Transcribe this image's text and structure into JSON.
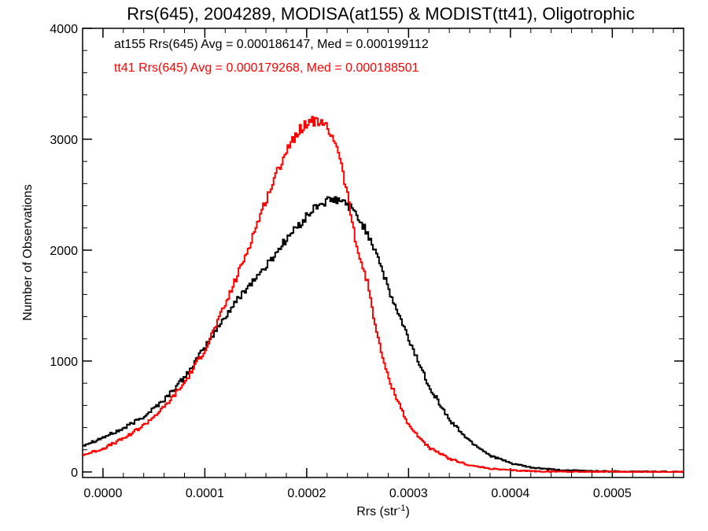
{
  "chart_data": {
    "type": "line",
    "title": "Rrs(645), 2004289, MODISA(at155) & MODIST(tt41), Oligotrophic",
    "xlabel": "Rrs (str",
    "xlabel_sup": "-1",
    "xlabel_close": ")",
    "ylabel": "Number of Observations",
    "xlim": [
      -2e-05,
      0.00057
    ],
    "ylim": [
      -50,
      4000
    ],
    "x_ticks": [
      "0.0000",
      "0.0001",
      "0.0002",
      "0.0003",
      "0.0004",
      "0.0005"
    ],
    "x_tick_values": [
      0.0,
      0.0001,
      0.0002,
      0.0003,
      0.0004,
      0.0005
    ],
    "y_ticks": [
      "0",
      "1000",
      "2000",
      "3000",
      "4000"
    ],
    "y_tick_values": [
      0,
      1000,
      2000,
      3000,
      4000
    ],
    "grid": false,
    "annotations": [
      "at155 Rrs(645) Avg = 0.000186147, Med = 0.000199112",
      "tt41 Rrs(645) Avg = 0.000179268, Med = 0.000188501"
    ],
    "series": [
      {
        "color": "#000000",
        "x": [
          -2e-05,
          0.0,
          2e-05,
          4e-05,
          6e-05,
          8e-05,
          0.0001,
          0.00012,
          0.00014,
          0.00016,
          0.00018,
          0.0002,
          0.00021,
          0.00022,
          0.00023,
          0.00024,
          0.00025,
          0.00026,
          0.00027,
          0.00028,
          0.0003,
          0.00032,
          0.00034,
          0.00036,
          0.00038,
          0.0004,
          0.00042,
          0.00045,
          0.0005,
          0.00057
        ],
        "y": [
          240,
          310,
          390,
          500,
          650,
          850,
          1120,
          1400,
          1650,
          1850,
          2100,
          2300,
          2400,
          2440,
          2450,
          2420,
          2300,
          2150,
          1950,
          1650,
          1200,
          780,
          470,
          280,
          150,
          80,
          40,
          15,
          5,
          0
        ]
      },
      {
        "color": "#ff0000",
        "x": [
          -2e-05,
          0.0,
          2e-05,
          4e-05,
          6e-05,
          8e-05,
          0.0001,
          0.00012,
          0.00014,
          0.00016,
          0.00018,
          0.00019,
          0.0002,
          0.00021,
          0.00022,
          0.00023,
          0.00024,
          0.00025,
          0.00026,
          0.00027,
          0.00028,
          0.0003,
          0.00032,
          0.00034,
          0.00036,
          0.00038,
          0.0004,
          0.00043,
          0.00047,
          0.00057
        ],
        "y": [
          150,
          210,
          300,
          420,
          580,
          800,
          1100,
          1500,
          1950,
          2450,
          2900,
          3050,
          3150,
          3170,
          3100,
          2950,
          2500,
          2000,
          1700,
          1200,
          850,
          420,
          220,
          120,
          60,
          30,
          15,
          5,
          2,
          0
        ]
      }
    ]
  }
}
